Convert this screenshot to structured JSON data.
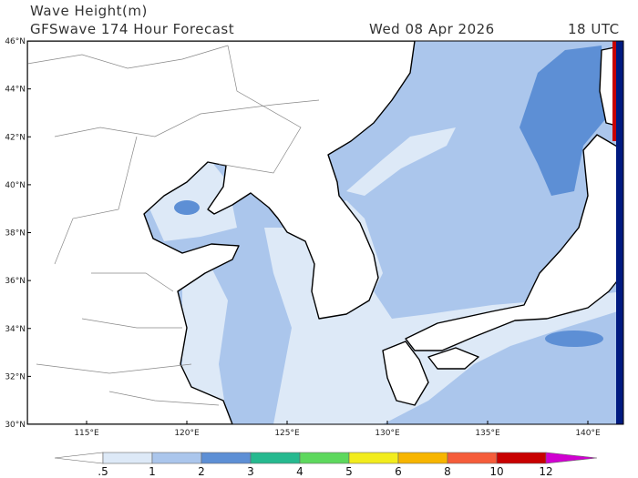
{
  "header": {
    "title": "Wave Height(m)",
    "subtitle": "GFSwave 174 Hour Forecast",
    "date": "Wed 08 Apr 2026",
    "time": "18 UTC"
  },
  "map": {
    "lat_ticks": [
      {
        "value": 30,
        "label": "30°N"
      },
      {
        "value": 32,
        "label": "32°N"
      },
      {
        "value": 34,
        "label": "34°N"
      },
      {
        "value": 36,
        "label": "36°N"
      },
      {
        "value": 38,
        "label": "38°N"
      },
      {
        "value": 40,
        "label": "40°N"
      },
      {
        "value": 42,
        "label": "42°N"
      },
      {
        "value": 44,
        "label": "44°N"
      },
      {
        "value": 46,
        "label": "46°N"
      }
    ],
    "lon_ticks": [
      {
        "value": 115,
        "label": "115°E"
      },
      {
        "value": 120,
        "label": "120°E"
      },
      {
        "value": 125,
        "label": "125°E"
      },
      {
        "value": 130,
        "label": "130°E"
      },
      {
        "value": 135,
        "label": "135°E"
      },
      {
        "value": 140,
        "label": "140°E"
      }
    ]
  },
  "colorbar": {
    "labels": [
      ".5",
      "1",
      "2",
      "3",
      "4",
      "5",
      "6",
      "8",
      "10",
      "12"
    ],
    "colors": [
      "#ffffff",
      "#dde9f7",
      "#abc6ec",
      "#5d8fd5",
      "#26b98f",
      "#5dd85d",
      "#f2ec1d",
      "#f7b500",
      "#f55c3a",
      "#c80000",
      "#d000d0"
    ]
  }
}
